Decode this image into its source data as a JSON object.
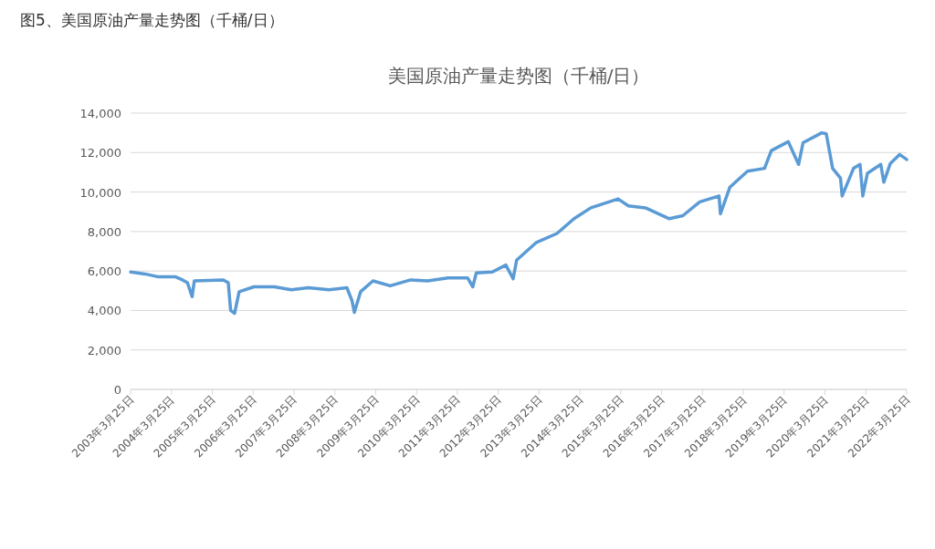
{
  "chart_data": {
    "type": "line",
    "title": "美国原油产量走势图（千桶/日）",
    "annotations": [
      "图5、美国原油产量走势图（千桶/日）"
    ],
    "x": [
      "2003-03-25",
      "2003-08-01",
      "2003-12-01",
      "2004-05-01",
      "2004-07-01",
      "2004-08-15",
      "2004-09-25",
      "2004-10-15",
      "2005-07-01",
      "2005-08-15",
      "2005-09-05",
      "2005-10-10",
      "2005-11-20",
      "2006-04-01",
      "2006-10-01",
      "2007-03-01",
      "2007-08-01",
      "2008-02-01",
      "2008-07-10",
      "2008-08-25",
      "2008-09-15",
      "2008-11-10",
      "2009-03-01",
      "2009-08-01",
      "2010-02-01",
      "2010-07-01",
      "2011-01-01",
      "2011-06-25",
      "2011-08-10",
      "2011-09-10",
      "2012-02-01",
      "2012-06-01",
      "2012-08-05",
      "2012-09-05",
      "2013-03-01",
      "2013-09-01",
      "2014-02-01",
      "2014-07-01",
      "2015-03-01",
      "2015-06-01",
      "2015-11-01",
      "2016-06-01",
      "2016-10-01",
      "2017-03-01",
      "2017-08-20",
      "2017-09-01",
      "2017-11-25",
      "2018-05-01",
      "2018-10-01",
      "2018-12-01",
      "2019-05-01",
      "2019-08-01",
      "2019-09-10",
      "2020-02-25",
      "2020-04-05",
      "2020-06-01",
      "2020-08-10",
      "2020-08-25",
      "2020-12-05",
      "2021-02-01",
      "2021-02-25",
      "2021-04-08",
      "2021-08-05",
      "2021-09-01",
      "2021-10-30",
      "2022-01-20",
      "2022-03-25"
    ],
    "series": [
      {
        "color": "#5b9bd5",
        "values": [
          5950,
          5850,
          5700,
          5700,
          5550,
          5400,
          4700,
          5500,
          5550,
          5400,
          4000,
          3850,
          4950,
          5200,
          5200,
          5050,
          5150,
          5050,
          5150,
          4500,
          3900,
          4950,
          5500,
          5250,
          5550,
          5500,
          5650,
          5650,
          5200,
          5900,
          5950,
          6300,
          5600,
          6550,
          7450,
          7900,
          8650,
          9200,
          9650,
          9300,
          9200,
          8650,
          8800,
          9500,
          9800,
          8900,
          10250,
          11050,
          11200,
          12100,
          12550,
          11400,
          12500,
          13000,
          12950,
          11200,
          10700,
          9800,
          11200,
          11400,
          9800,
          10950,
          11400,
          10500,
          11450,
          11900,
          11650
        ]
      }
    ],
    "xlim": [
      "2003-03-25",
      "2022-03-25"
    ],
    "xticks": [
      {
        "value": "2003-03-25",
        "label": "2003年3月25日"
      },
      {
        "value": "2004-03-25",
        "label": "2004年3月25日"
      },
      {
        "value": "2005-03-25",
        "label": "2005年3月25日"
      },
      {
        "value": "2006-03-25",
        "label": "2006年3月25日"
      },
      {
        "value": "2007-03-25",
        "label": "2007年3月25日"
      },
      {
        "value": "2008-03-25",
        "label": "2008年3月25日"
      },
      {
        "value": "2009-03-25",
        "label": "2009年3月25日"
      },
      {
        "value": "2010-03-25",
        "label": "2010年3月25日"
      },
      {
        "value": "2011-03-25",
        "label": "2011年3月25日"
      },
      {
        "value": "2012-03-25",
        "label": "2012年3月25日"
      },
      {
        "value": "2013-03-25",
        "label": "2013年3月25日"
      },
      {
        "value": "2014-03-25",
        "label": "2014年3月25日"
      },
      {
        "value": "2015-03-25",
        "label": "2015年3月25日"
      },
      {
        "value": "2016-03-25",
        "label": "2016年3月25日"
      },
      {
        "value": "2017-03-25",
        "label": "2017年3月25日"
      },
      {
        "value": "2018-03-25",
        "label": "2018年3月25日"
      },
      {
        "value": "2019-03-25",
        "label": "2019年3月25日"
      },
      {
        "value": "2020-03-25",
        "label": "2020年3月25日"
      },
      {
        "value": "2021-03-25",
        "label": "2021年3月25日"
      },
      {
        "value": "2022-03-25",
        "label": "2022年3月25日"
      }
    ],
    "ylim": [
      0,
      14000
    ],
    "yticks": [
      {
        "value": 0,
        "label": "0"
      },
      {
        "value": 2000,
        "label": "2,000"
      },
      {
        "value": 4000,
        "label": "4,000"
      },
      {
        "value": 6000,
        "label": "6,000"
      },
      {
        "value": 8000,
        "label": "8,000"
      },
      {
        "value": 10000,
        "label": "10,000"
      },
      {
        "value": 12000,
        "label": "12,000"
      },
      {
        "value": 14000,
        "label": "14,000"
      }
    ],
    "grid": "y"
  }
}
